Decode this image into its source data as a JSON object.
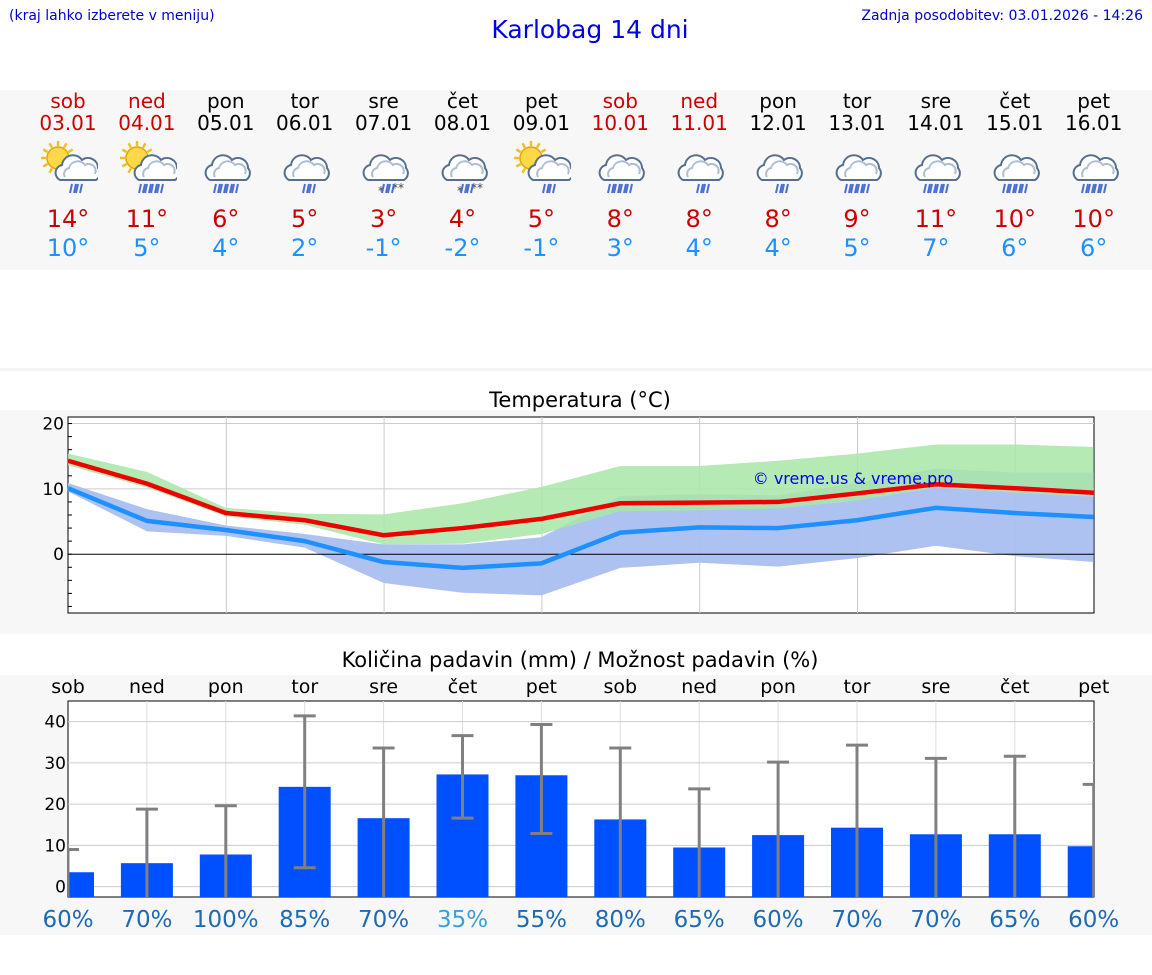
{
  "header": {
    "location_hint": "(kraj lahko izberete v meniju)",
    "title": "Karlobag 14 dni",
    "last_update": "Zadnja posodobitev: 03.01.2026 - 14:26"
  },
  "days": [
    {
      "name": "sob",
      "date": "03.01",
      "weekend": true,
      "icon": "sun-cloud-rain-icon",
      "max": "14°",
      "min": "10°"
    },
    {
      "name": "ned",
      "date": "04.01",
      "weekend": true,
      "icon": "sun-cloud-heavy-rain-icon",
      "max": "11°",
      "min": "5°"
    },
    {
      "name": "pon",
      "date": "05.01",
      "weekend": false,
      "icon": "cloud-heavy-rain-icon",
      "max": "6°",
      "min": "4°"
    },
    {
      "name": "tor",
      "date": "06.01",
      "weekend": false,
      "icon": "cloud-rain-icon",
      "max": "5°",
      "min": "2°"
    },
    {
      "name": "sre",
      "date": "07.01",
      "weekend": false,
      "icon": "cloud-snow-icon",
      "max": "3°",
      "min": "-1°"
    },
    {
      "name": "čet",
      "date": "08.01",
      "weekend": false,
      "icon": "cloud-sleet-icon",
      "max": "4°",
      "min": "-2°"
    },
    {
      "name": "pet",
      "date": "09.01",
      "weekend": false,
      "icon": "sun-cloud-rain-icon",
      "max": "5°",
      "min": "-1°"
    },
    {
      "name": "sob",
      "date": "10.01",
      "weekend": true,
      "icon": "cloud-heavy-rain-icon",
      "max": "8°",
      "min": "3°"
    },
    {
      "name": "ned",
      "date": "11.01",
      "weekend": true,
      "icon": "cloud-rain-icon",
      "max": "8°",
      "min": "4°"
    },
    {
      "name": "pon",
      "date": "12.01",
      "weekend": false,
      "icon": "cloud-rain-icon",
      "max": "8°",
      "min": "4°"
    },
    {
      "name": "tor",
      "date": "13.01",
      "weekend": false,
      "icon": "cloud-heavy-rain-icon",
      "max": "9°",
      "min": "5°"
    },
    {
      "name": "sre",
      "date": "14.01",
      "weekend": false,
      "icon": "cloud-heavy-rain-icon",
      "max": "11°",
      "min": "7°"
    },
    {
      "name": "čet",
      "date": "15.01",
      "weekend": false,
      "icon": "cloud-heavy-rain-icon",
      "max": "10°",
      "min": "6°"
    },
    {
      "name": "pet",
      "date": "16.01",
      "weekend": false,
      "icon": "cloud-heavy-rain-icon",
      "max": "10°",
      "min": "6°"
    }
  ],
  "colors": {
    "weekend": "#cc0000",
    "max_line": "#ee0000",
    "min_line": "#1e90ff",
    "max_band": "#a8e6a8",
    "min_band": "#aabff0",
    "overlap_band": "#7fc6a8",
    "bar": "#0050ff",
    "errbar": "#808080",
    "prob_dark": "#1e6ab4",
    "prob_light": "#3aa0d8"
  },
  "chart_data": [
    {
      "type": "line",
      "title": "Temperatura (°C)",
      "watermark": "© vreme.us & vreme.pro",
      "x_index": [
        0,
        1,
        2,
        3,
        4,
        5,
        6,
        7,
        8,
        9,
        10,
        11,
        12,
        13
      ],
      "ylim": [
        -9,
        21
      ],
      "yticks": [
        0,
        10,
        20
      ],
      "series": [
        {
          "name": "max",
          "values": [
            14.3,
            10.8,
            6.3,
            5.2,
            2.9,
            4.0,
            5.4,
            7.8,
            7.9,
            8.0,
            9.3,
            10.7,
            10.1,
            9.4
          ]
        },
        {
          "name": "min",
          "values": [
            10.1,
            5.1,
            3.7,
            2.0,
            -1.2,
            -2.1,
            -1.4,
            3.3,
            4.1,
            4.0,
            5.2,
            7.1,
            6.3,
            5.7
          ]
        }
      ],
      "bands": [
        {
          "name": "max-range",
          "low": [
            13.6,
            10.2,
            5.8,
            4.5,
            1.5,
            1.6,
            3.1,
            6.6,
            6.7,
            7.0,
            8.2,
            10.2,
            9.4,
            8.8
          ],
          "high": [
            15.4,
            12.6,
            7.1,
            6.2,
            6.1,
            7.8,
            10.3,
            13.5,
            13.5,
            14.3,
            15.4,
            16.8,
            16.8,
            16.4
          ]
        },
        {
          "name": "min-range",
          "low": [
            9.6,
            3.5,
            2.8,
            1.0,
            -4.4,
            -5.9,
            -6.3,
            -2.1,
            -1.3,
            -1.9,
            -0.6,
            1.3,
            -0.3,
            -1.2
          ],
          "high": [
            10.9,
            6.9,
            4.4,
            3.1,
            1.5,
            1.5,
            2.6,
            8.9,
            9.2,
            9.0,
            10.9,
            13.1,
            12.5,
            12.5
          ]
        }
      ]
    },
    {
      "type": "bar",
      "title": "Količina padavin (mm) / Možnost padavin (%)",
      "categories": [
        "sob",
        "ned",
        "pon",
        "tor",
        "sre",
        "čet",
        "pet",
        "sob",
        "ned",
        "pon",
        "tor",
        "sre",
        "čet",
        "pet"
      ],
      "values": [
        3.5,
        5.7,
        7.8,
        24.2,
        16.6,
        27.2,
        27.0,
        16.3,
        9.5,
        12.5,
        14.3,
        12.7,
        12.7,
        9.8
      ],
      "err_low": [
        0,
        0,
        0,
        4.6,
        0,
        16.6,
        12.9,
        0,
        0,
        0,
        0,
        0,
        0,
        0
      ],
      "err_high": [
        9.0,
        18.8,
        19.6,
        41.4,
        33.6,
        36.6,
        39.3,
        33.6,
        23.7,
        30.2,
        34.3,
        31.1,
        31.6,
        24.8
      ],
      "ylim": [
        -2.5,
        45
      ],
      "yticks": [
        0,
        10,
        20,
        30,
        40
      ],
      "probability": [
        "60%",
        "70%",
        "100%",
        "85%",
        "70%",
        "35%",
        "55%",
        "80%",
        "65%",
        "60%",
        "70%",
        "70%",
        "65%",
        "60%"
      ]
    }
  ]
}
